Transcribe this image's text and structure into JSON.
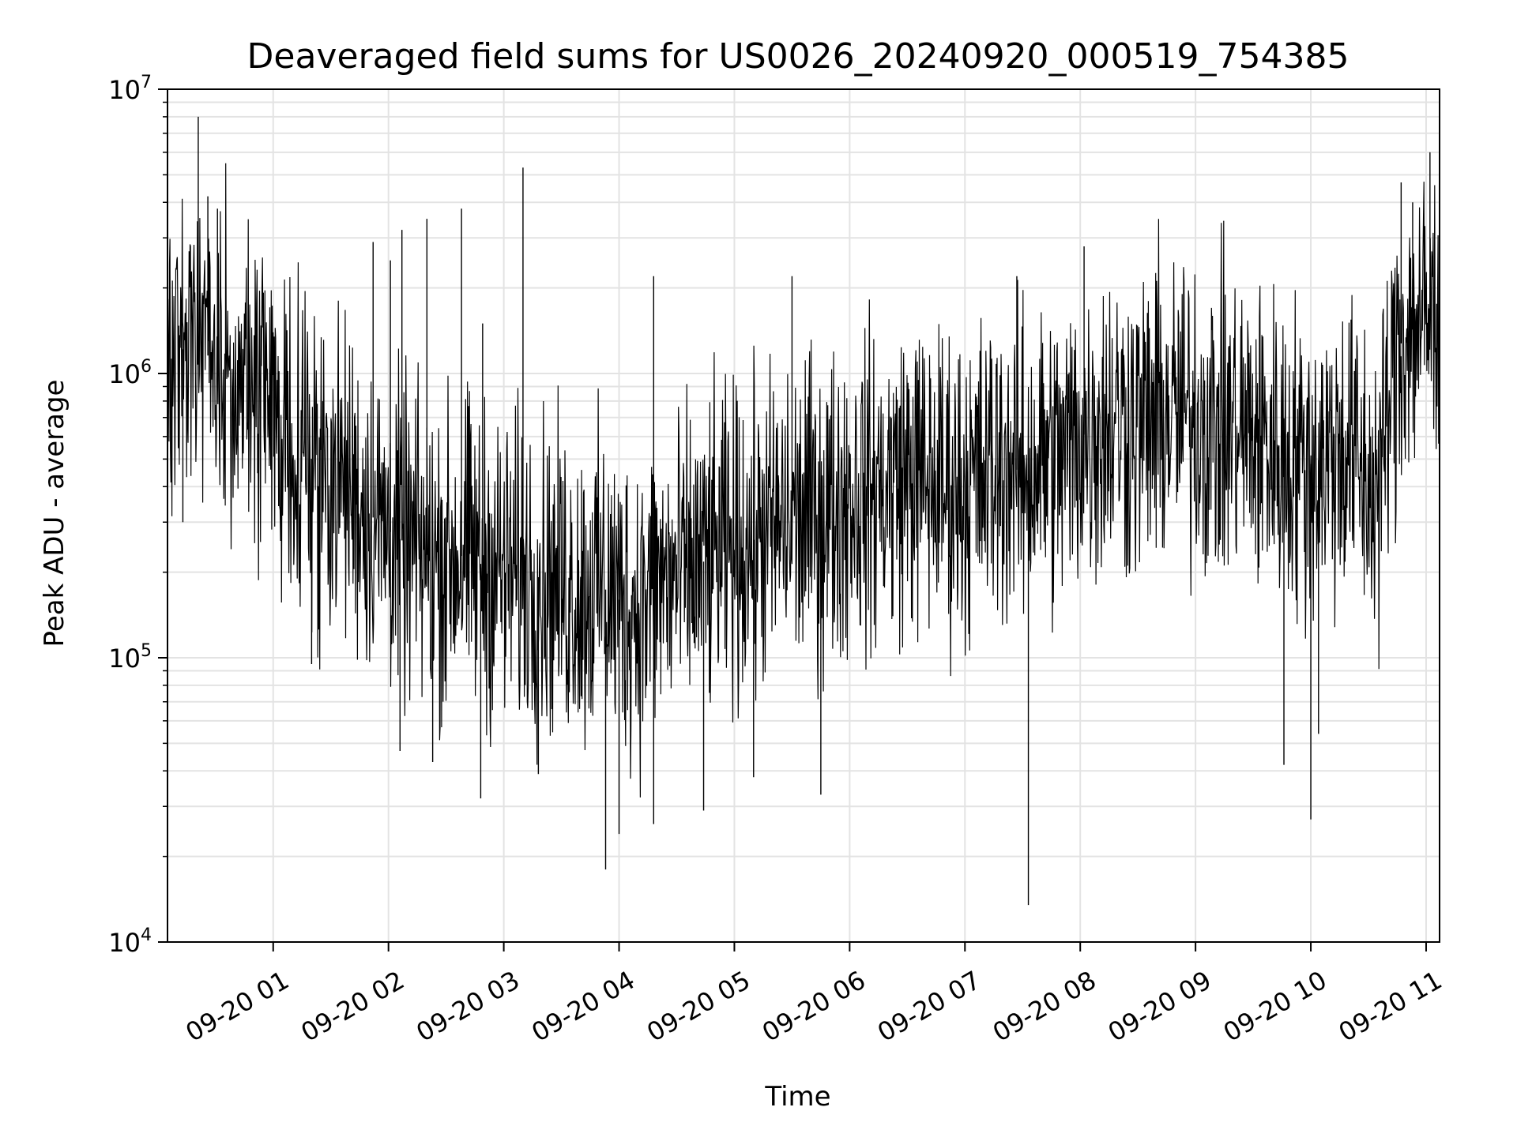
{
  "chart_data": {
    "type": "line",
    "title": "Deaveraged field sums for US0026_20240920_000519_754385",
    "xlabel": "Time",
    "ylabel": "Peak ADU - average",
    "yscale": "log",
    "ylim": [
      10000,
      10000000
    ],
    "xlim": [
      "2024-09-20 00:05",
      "2024-09-20 11:07"
    ],
    "grid": true,
    "legend": "none",
    "line_color": "#000000",
    "x_ticks": [
      {
        "label": "09-20 01",
        "time": "2024-09-20 01:00"
      },
      {
        "label": "09-20 02",
        "time": "2024-09-20 02:00"
      },
      {
        "label": "09-20 03",
        "time": "2024-09-20 03:00"
      },
      {
        "label": "09-20 04",
        "time": "2024-09-20 04:00"
      },
      {
        "label": "09-20 05",
        "time": "2024-09-20 05:00"
      },
      {
        "label": "09-20 06",
        "time": "2024-09-20 06:00"
      },
      {
        "label": "09-20 07",
        "time": "2024-09-20 07:00"
      },
      {
        "label": "09-20 08",
        "time": "2024-09-20 08:00"
      },
      {
        "label": "09-20 09",
        "time": "2024-09-20 09:00"
      },
      {
        "label": "09-20 10",
        "time": "2024-09-20 10:00"
      },
      {
        "label": "09-20 11",
        "time": "2024-09-20 11:00"
      }
    ],
    "y_ticks": [
      {
        "base": "10",
        "exp": "4",
        "value": 10000
      },
      {
        "base": "10",
        "exp": "5",
        "value": 100000
      },
      {
        "base": "10",
        "exp": "6",
        "value": 1000000
      },
      {
        "base": "10",
        "exp": "7",
        "value": 10000000
      }
    ],
    "series": [
      {
        "x": [
          "2024-09-20 00:05",
          "2024-09-20 00:10",
          "2024-09-20 00:15",
          "2024-09-20 00:20",
          "2024-09-20 00:25",
          "2024-09-20 00:30",
          "2024-09-20 00:35",
          "2024-09-20 00:40",
          "2024-09-20 00:45",
          "2024-09-20 00:50",
          "2024-09-20 00:55",
          "2024-09-20 01:00",
          "2024-09-20 01:10",
          "2024-09-20 01:20",
          "2024-09-20 01:30",
          "2024-09-20 01:40",
          "2024-09-20 01:50",
          "2024-09-20 02:00",
          "2024-09-20 02:10",
          "2024-09-20 02:20",
          "2024-09-20 02:30",
          "2024-09-20 02:40",
          "2024-09-20 02:50",
          "2024-09-20 03:00",
          "2024-09-20 03:10",
          "2024-09-20 03:20",
          "2024-09-20 03:30",
          "2024-09-20 03:40",
          "2024-09-20 03:50",
          "2024-09-20 04:00",
          "2024-09-20 04:10",
          "2024-09-20 04:20",
          "2024-09-20 04:30",
          "2024-09-20 04:40",
          "2024-09-20 04:50",
          "2024-09-20 05:00",
          "2024-09-20 05:10",
          "2024-09-20 05:20",
          "2024-09-20 05:30",
          "2024-09-20 05:40",
          "2024-09-20 05:50",
          "2024-09-20 06:00",
          "2024-09-20 06:10",
          "2024-09-20 06:20",
          "2024-09-20 06:30",
          "2024-09-20 06:40",
          "2024-09-20 06:50",
          "2024-09-20 07:00",
          "2024-09-20 07:10",
          "2024-09-20 07:20",
          "2024-09-20 07:30",
          "2024-09-20 07:40",
          "2024-09-20 07:50",
          "2024-09-20 08:00",
          "2024-09-20 08:10",
          "2024-09-20 08:20",
          "2024-09-20 08:30",
          "2024-09-20 08:40",
          "2024-09-20 08:50",
          "2024-09-20 09:00",
          "2024-09-20 09:10",
          "2024-09-20 09:20",
          "2024-09-20 09:30",
          "2024-09-20 09:40",
          "2024-09-20 09:50",
          "2024-09-20 10:00",
          "2024-09-20 10:10",
          "2024-09-20 10:20",
          "2024-09-20 10:30",
          "2024-09-20 10:35",
          "2024-09-20 10:40",
          "2024-09-20 10:45",
          "2024-09-20 10:50",
          "2024-09-20 10:55",
          "2024-09-20 11:00",
          "2024-09-20 11:05"
        ],
        "y": [
          900000,
          1100000,
          1300000,
          1500000,
          1200000,
          1000000,
          900000,
          850000,
          950000,
          800000,
          750000,
          700000,
          600000,
          500000,
          450000,
          400000,
          320000,
          280000,
          250000,
          230000,
          220000,
          230000,
          210000,
          200000,
          200000,
          190000,
          180000,
          170000,
          180000,
          160000,
          150000,
          180000,
          190000,
          210000,
          230000,
          240000,
          260000,
          280000,
          300000,
          320000,
          330000,
          380000,
          380000,
          400000,
          450000,
          420000,
          400000,
          400000,
          430000,
          480000,
          450000,
          500000,
          500000,
          600000,
          650000,
          700000,
          650000,
          700000,
          720000,
          700000,
          650000,
          650000,
          600000,
          550000,
          500000,
          480000,
          520000,
          550000,
          400000,
          380000,
          700000,
          1200000,
          1400000,
          1500000,
          1500000,
          1600000
        ]
      }
    ],
    "spikes": [
      {
        "x": "2024-09-20 00:21",
        "y": 8000000
      },
      {
        "x": "2024-09-20 00:26",
        "y": 4200000
      },
      {
        "x": "2024-09-20 00:31",
        "y": 3800000
      },
      {
        "x": "2024-09-20 01:52",
        "y": 2900000
      },
      {
        "x": "2024-09-20 02:01",
        "y": 2500000
      },
      {
        "x": "2024-09-20 02:07",
        "y": 3200000
      },
      {
        "x": "2024-09-20 02:20",
        "y": 3500000
      },
      {
        "x": "2024-09-20 02:38",
        "y": 3800000
      },
      {
        "x": "2024-09-20 02:49",
        "y": 1500000
      },
      {
        "x": "2024-09-20 03:10",
        "y": 5300000
      },
      {
        "x": "2024-09-20 04:18",
        "y": 2200000
      },
      {
        "x": "2024-09-20 05:30",
        "y": 2200000
      },
      {
        "x": "2024-09-20 07:27",
        "y": 2200000
      },
      {
        "x": "2024-09-20 08:02",
        "y": 2800000
      },
      {
        "x": "2024-09-20 10:47",
        "y": 4700000
      },
      {
        "x": "2024-09-20 10:53",
        "y": 4000000
      },
      {
        "x": "2024-09-20 11:02",
        "y": 6000000
      },
      {
        "x": "2024-09-20 00:13",
        "y": 300000
      },
      {
        "x": "2024-09-20 01:20",
        "y": 95000
      },
      {
        "x": "2024-09-20 02:06",
        "y": 47000
      },
      {
        "x": "2024-09-20 02:23",
        "y": 43000
      },
      {
        "x": "2024-09-20 02:48",
        "y": 32000
      },
      {
        "x": "2024-09-20 03:18",
        "y": 39000
      },
      {
        "x": "2024-09-20 03:53",
        "y": 18000
      },
      {
        "x": "2024-09-20 04:00",
        "y": 24000
      },
      {
        "x": "2024-09-20 04:18",
        "y": 26000
      },
      {
        "x": "2024-09-20 04:44",
        "y": 29000
      },
      {
        "x": "2024-09-20 05:10",
        "y": 38000
      },
      {
        "x": "2024-09-20 05:45",
        "y": 33000
      },
      {
        "x": "2024-09-20 07:33",
        "y": 13500
      },
      {
        "x": "2024-09-20 09:46",
        "y": 42000
      },
      {
        "x": "2024-09-20 10:00",
        "y": 27000
      },
      {
        "x": "2024-09-20 10:04",
        "y": 54000
      }
    ]
  }
}
